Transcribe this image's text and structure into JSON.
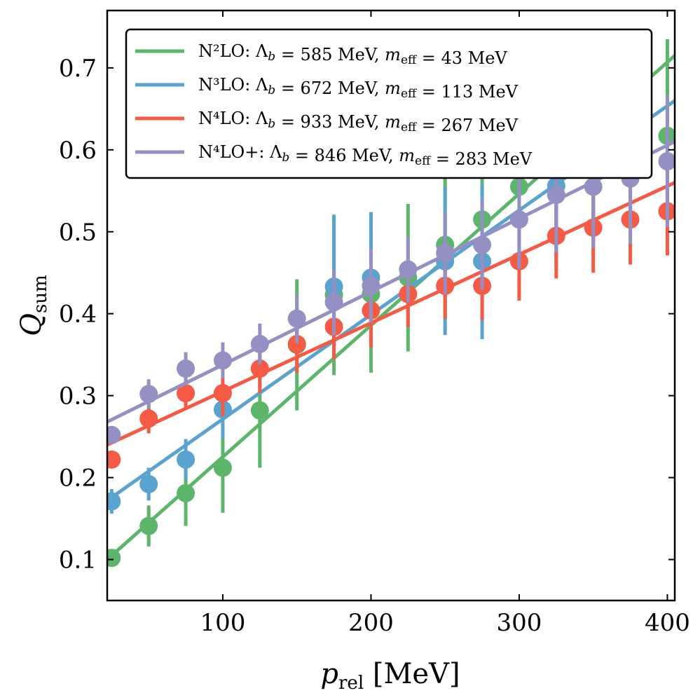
{
  "chart_data": {
    "type": "scatter",
    "xlabel": "p_rel [MeV]",
    "ylabel": "Q_sum",
    "xlim": [
      22,
      405
    ],
    "ylim": [
      0.05,
      0.77
    ],
    "xticks": [
      100,
      200,
      300,
      400
    ],
    "yticks": [
      0.1,
      0.2,
      0.3,
      0.4,
      0.5,
      0.6,
      0.7
    ],
    "xtick_labels": [
      "100",
      "200",
      "300",
      "400"
    ],
    "ytick_labels": [
      "0.1",
      "0.2",
      "0.3",
      "0.4",
      "0.5",
      "0.6",
      "0.7"
    ],
    "grid": false,
    "legend_position": "top-right",
    "series": [
      {
        "name": "N²LO: Λb = 585 MeV, meff = 43 MeV",
        "color": "#5bb56a",
        "x": [
          25,
          50,
          75,
          100,
          125,
          150,
          175,
          200,
          225,
          250,
          275,
          300,
          325,
          350,
          375,
          400
        ],
        "y": [
          0.102,
          0.141,
          0.181,
          0.212,
          0.282,
          0.362,
          0.423,
          0.424,
          0.444,
          0.484,
          0.515,
          0.555,
          0.586,
          0.605,
          0.616,
          0.617
        ],
        "err": [
          0.01,
          0.025,
          0.04,
          0.055,
          0.07,
          0.08,
          0.098,
          0.096,
          0.09,
          0.092,
          0.108,
          0.098,
          0.106,
          0.112,
          0.118,
          0.118
        ],
        "fit": [
          0.1,
          0.715
        ]
      },
      {
        "name": "N³LO: Λb = 672 MeV, meff = 113 MeV",
        "color": "#5aa2d0",
        "x": [
          25,
          50,
          75,
          100,
          175,
          200,
          250,
          275,
          325,
          350
        ],
        "y": [
          0.171,
          0.192,
          0.222,
          0.283,
          0.433,
          0.444,
          0.464,
          0.464,
          0.556,
          0.576
        ],
        "err": [
          0.015,
          0.02,
          0.025,
          0.035,
          0.087,
          0.08,
          0.09,
          0.095,
          0.1,
          0.1
        ],
        "fit": [
          0.172,
          0.66
        ]
      },
      {
        "name": "N⁴LO: Λb = 933 MeV, meff = 267 MeV",
        "color": "#f45a44",
        "x": [
          25,
          50,
          75,
          100,
          125,
          150,
          175,
          200,
          225,
          250,
          275,
          300,
          325,
          350,
          375,
          400
        ],
        "y": [
          0.222,
          0.272,
          0.303,
          0.303,
          0.333,
          0.363,
          0.384,
          0.404,
          0.424,
          0.434,
          0.434,
          0.464,
          0.495,
          0.505,
          0.515,
          0.525
        ],
        "err": [
          0.005,
          0.018,
          0.02,
          0.028,
          0.03,
          0.035,
          0.04,
          0.045,
          0.04,
          0.04,
          0.042,
          0.048,
          0.052,
          0.055,
          0.055,
          0.054
        ],
        "fit": [
          0.24,
          0.56
        ]
      },
      {
        "name": "N⁴LO+: Λb = 846 MeV, meff = 283 MeV",
        "color": "#9590c4",
        "x": [
          25,
          50,
          75,
          100,
          125,
          150,
          175,
          200,
          225,
          250,
          275,
          300,
          325,
          350,
          375,
          400
        ],
        "y": [
          0.252,
          0.302,
          0.333,
          0.343,
          0.363,
          0.394,
          0.414,
          0.434,
          0.454,
          0.474,
          0.484,
          0.515,
          0.545,
          0.555,
          0.565,
          0.586
        ],
        "err": [
          0.01,
          0.018,
          0.02,
          0.022,
          0.025,
          0.03,
          0.04,
          0.045,
          0.04,
          0.05,
          0.055,
          0.06,
          0.07,
          0.075,
          0.08,
          0.08
        ],
        "fit": [
          0.268,
          0.61
        ]
      }
    ]
  }
}
